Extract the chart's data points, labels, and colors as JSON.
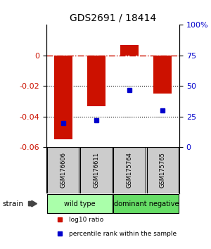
{
  "title": "GDS2691 / 18414",
  "samples": [
    "GSM176606",
    "GSM176611",
    "GSM175764",
    "GSM175765"
  ],
  "log10_ratio": [
    -0.055,
    -0.033,
    0.007,
    -0.025
  ],
  "percentile_rank": [
    20,
    22,
    47,
    30
  ],
  "ylim_left": [
    -0.06,
    0.02
  ],
  "ylim_right": [
    0,
    100
  ],
  "yticks_left": [
    0,
    -0.02,
    -0.04,
    -0.06
  ],
  "yticks_right": [
    0,
    25,
    50,
    75,
    100
  ],
  "ytick_right_labels": [
    "0",
    "25",
    "50",
    "75",
    "100%"
  ],
  "bar_color": "#cc1100",
  "dot_color": "#0000cc",
  "zero_line_color": "#cc1100",
  "groups": [
    {
      "label": "wild type",
      "samples": [
        0,
        1
      ],
      "color": "#aaffaa"
    },
    {
      "label": "dominant negative",
      "samples": [
        2,
        3
      ],
      "color": "#66dd66"
    }
  ],
  "legend_items": [
    {
      "color": "#cc1100",
      "label": "log10 ratio"
    },
    {
      "color": "#0000cc",
      "label": "percentile rank within the sample"
    }
  ],
  "strain_label": "strain"
}
